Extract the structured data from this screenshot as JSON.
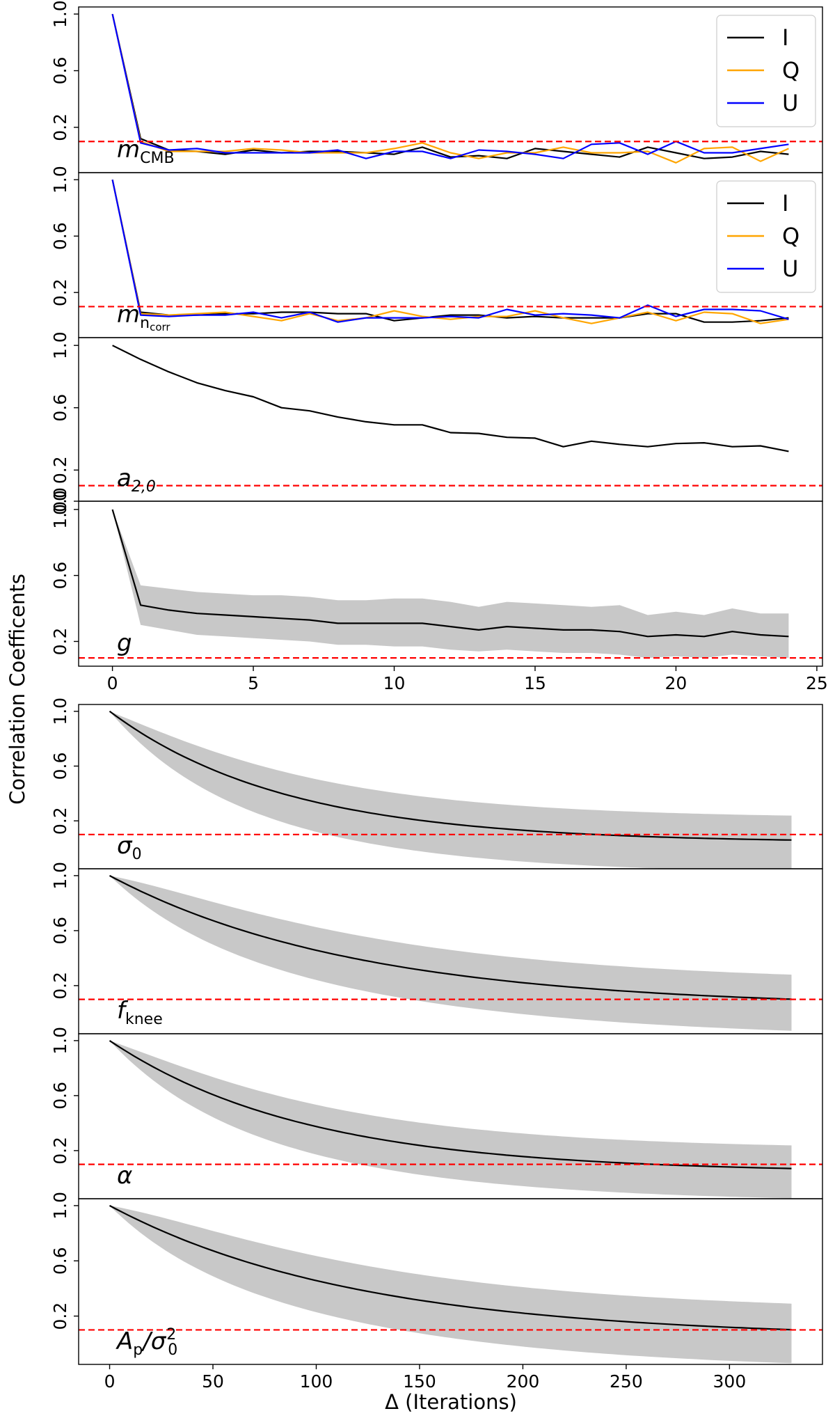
{
  "figure": {
    "ylabel": "Correlation Coefficents",
    "xlabel": "Δ (Iterations)",
    "threshold": 0.1,
    "colors": {
      "I": "#000000",
      "Q": "#ffa500",
      "U": "#0000ff",
      "band": "#c8c8c8",
      "threshold": "#ff0000"
    }
  },
  "chart_data": [
    {
      "type": "line",
      "panel_label": {
        "main": "m",
        "sub": "CMB"
      },
      "x": [
        0,
        1,
        2,
        3,
        4,
        5,
        6,
        7,
        8,
        9,
        10,
        11,
        12,
        13,
        14,
        15,
        16,
        17,
        18,
        19,
        20,
        21,
        22,
        23,
        24
      ],
      "series": [
        {
          "name": "I",
          "values": [
            1.0,
            0.12,
            0.04,
            0.03,
            0.01,
            0.04,
            0.02,
            0.03,
            0.03,
            0.02,
            0.01,
            0.06,
            -0.01,
            0.0,
            -0.02,
            0.05,
            0.03,
            0.01,
            -0.01,
            0.06,
            0.02,
            -0.02,
            -0.01,
            0.03,
            0.01
          ]
        },
        {
          "name": "Q",
          "values": [
            1.0,
            0.1,
            0.03,
            0.03,
            0.03,
            0.05,
            0.04,
            0.02,
            0.02,
            0.02,
            0.05,
            0.09,
            0.02,
            -0.02,
            0.02,
            0.02,
            0.06,
            0.02,
            0.02,
            0.03,
            -0.05,
            0.05,
            0.06,
            -0.04,
            0.05
          ]
        },
        {
          "name": "U",
          "values": [
            1.0,
            0.09,
            0.04,
            0.05,
            0.02,
            0.02,
            0.02,
            0.02,
            0.04,
            -0.02,
            0.03,
            0.03,
            -0.02,
            0.04,
            0.03,
            0.01,
            -0.02,
            0.08,
            0.09,
            0.01,
            0.1,
            0.02,
            0.02,
            0.05,
            0.08
          ]
        }
      ],
      "ylim": [
        -0.12,
        1.05
      ],
      "yticks": [
        1.0,
        0.6,
        0.2
      ],
      "legend": [
        "I",
        "Q",
        "U"
      ],
      "legend_loc": "top-right"
    },
    {
      "type": "line",
      "panel_label": {
        "main": "m",
        "sub": "n_corr"
      },
      "x": [
        0,
        1,
        2,
        3,
        4,
        5,
        6,
        7,
        8,
        9,
        10,
        11,
        12,
        13,
        14,
        15,
        16,
        17,
        18,
        19,
        20,
        21,
        22,
        23,
        24
      ],
      "series": [
        {
          "name": "I",
          "values": [
            1.0,
            0.06,
            0.04,
            0.04,
            0.05,
            0.05,
            0.06,
            0.06,
            0.05,
            0.05,
            0.0,
            0.02,
            0.04,
            0.04,
            0.02,
            0.03,
            0.02,
            0.02,
            0.02,
            0.05,
            0.05,
            -0.01,
            -0.01,
            0.0,
            0.02
          ]
        },
        {
          "name": "Q",
          "values": [
            1.0,
            0.05,
            0.04,
            0.05,
            0.06,
            0.03,
            0.0,
            0.05,
            0.0,
            0.02,
            0.07,
            0.03,
            0.01,
            0.03,
            0.03,
            0.07,
            0.02,
            -0.02,
            0.02,
            0.06,
            0.0,
            0.06,
            0.05,
            -0.02,
            0.01
          ]
        },
        {
          "name": "U",
          "values": [
            1.0,
            0.04,
            0.03,
            0.04,
            0.04,
            0.06,
            0.02,
            0.06,
            -0.01,
            0.02,
            0.02,
            0.02,
            0.03,
            0.02,
            0.08,
            0.04,
            0.05,
            0.04,
            0.02,
            0.11,
            0.03,
            0.08,
            0.08,
            0.07,
            0.01
          ]
        }
      ],
      "ylim": [
        -0.12,
        1.05
      ],
      "yticks": [
        1.0,
        0.6,
        0.2
      ],
      "legend": [
        "I",
        "Q",
        "U"
      ],
      "legend_loc": "top-right"
    },
    {
      "type": "line",
      "panel_label": {
        "main": "a",
        "sub": "2,0"
      },
      "x": [
        0,
        1,
        2,
        3,
        4,
        5,
        6,
        7,
        8,
        9,
        10,
        11,
        12,
        13,
        14,
        15,
        16,
        17,
        18,
        19,
        20,
        21,
        22,
        23,
        24
      ],
      "series": [
        {
          "name": "a20",
          "values": [
            1.0,
            0.91,
            0.83,
            0.76,
            0.71,
            0.67,
            0.6,
            0.58,
            0.54,
            0.51,
            0.49,
            0.49,
            0.44,
            0.435,
            0.41,
            0.405,
            0.35,
            0.385,
            0.365,
            0.35,
            0.37,
            0.375,
            0.35,
            0.355,
            0.32
          ]
        }
      ],
      "ylim": [
        0.0,
        1.05
      ],
      "yticks": [
        1.0,
        0.6,
        0.2,
        0.0
      ],
      "ytick_labels": [
        "1.0",
        "0.6",
        "0.2",
        "0.0"
      ]
    },
    {
      "type": "area",
      "panel_label": {
        "main": "g",
        "sub": ""
      },
      "x": [
        0,
        1,
        2,
        3,
        4,
        5,
        6,
        7,
        8,
        9,
        10,
        11,
        12,
        13,
        14,
        15,
        16,
        17,
        18,
        19,
        20,
        21,
        22,
        23,
        24
      ],
      "series": [
        {
          "name": "mean",
          "values": [
            1.0,
            0.42,
            0.39,
            0.37,
            0.36,
            0.35,
            0.34,
            0.33,
            0.31,
            0.31,
            0.31,
            0.31,
            0.29,
            0.27,
            0.29,
            0.28,
            0.27,
            0.27,
            0.26,
            0.23,
            0.24,
            0.23,
            0.26,
            0.24,
            0.23
          ]
        },
        {
          "name": "upper",
          "values": [
            1.0,
            0.54,
            0.52,
            0.5,
            0.49,
            0.48,
            0.48,
            0.47,
            0.45,
            0.45,
            0.46,
            0.46,
            0.44,
            0.41,
            0.44,
            0.43,
            0.42,
            0.41,
            0.42,
            0.36,
            0.38,
            0.36,
            0.4,
            0.37,
            0.37
          ]
        },
        {
          "name": "lower",
          "values": [
            1.0,
            0.3,
            0.27,
            0.24,
            0.23,
            0.22,
            0.21,
            0.2,
            0.18,
            0.18,
            0.17,
            0.17,
            0.15,
            0.14,
            0.15,
            0.14,
            0.13,
            0.13,
            0.12,
            0.1,
            0.11,
            0.1,
            0.12,
            0.11,
            0.1
          ]
        }
      ],
      "ylim": [
        0.05,
        1.05
      ],
      "yticks": [
        1.0,
        0.6,
        0.2
      ],
      "ytick_labels": [
        "1.00",
        "0.6",
        "0.2"
      ]
    },
    {
      "type": "area",
      "panel_label": {
        "main": "σ",
        "sub": "0"
      },
      "curve": {
        "tau": 85,
        "x_max": 330,
        "spread_max": 0.17
      },
      "ylim": [
        -0.15,
        1.05
      ],
      "yticks": [
        1.0,
        0.6,
        0.2
      ]
    },
    {
      "type": "area",
      "panel_label": {
        "main": "f",
        "sub": "knee"
      },
      "curve": {
        "tau": 120,
        "x_max": 330,
        "spread_max": 0.17
      },
      "ylim": [
        -0.15,
        1.05
      ],
      "yticks": [
        1.0,
        0.6,
        0.2
      ]
    },
    {
      "type": "area",
      "panel_label": {
        "main": "α",
        "sub": ""
      },
      "curve": {
        "tau": 95,
        "x_max": 330,
        "spread_max": 0.16
      },
      "ylim": [
        -0.15,
        1.05
      ],
      "yticks": [
        1.0,
        0.6,
        0.2
      ]
    },
    {
      "type": "area",
      "panel_label": {
        "main": "A_p/σ²_0",
        "sub": ""
      },
      "curve": {
        "tau": 120,
        "x_max": 330,
        "spread_max": 0.18
      },
      "ylim": [
        -0.15,
        1.05
      ],
      "yticks": [
        1.0,
        0.6,
        0.2
      ]
    }
  ],
  "axes_groups": [
    {
      "xlim": [
        -1.2,
        25.2
      ],
      "xticks": [
        0,
        5,
        10,
        15,
        20,
        25
      ]
    },
    {
      "xlim": [
        -15,
        345
      ],
      "xticks": [
        0,
        50,
        100,
        150,
        200,
        250,
        300
      ]
    }
  ]
}
